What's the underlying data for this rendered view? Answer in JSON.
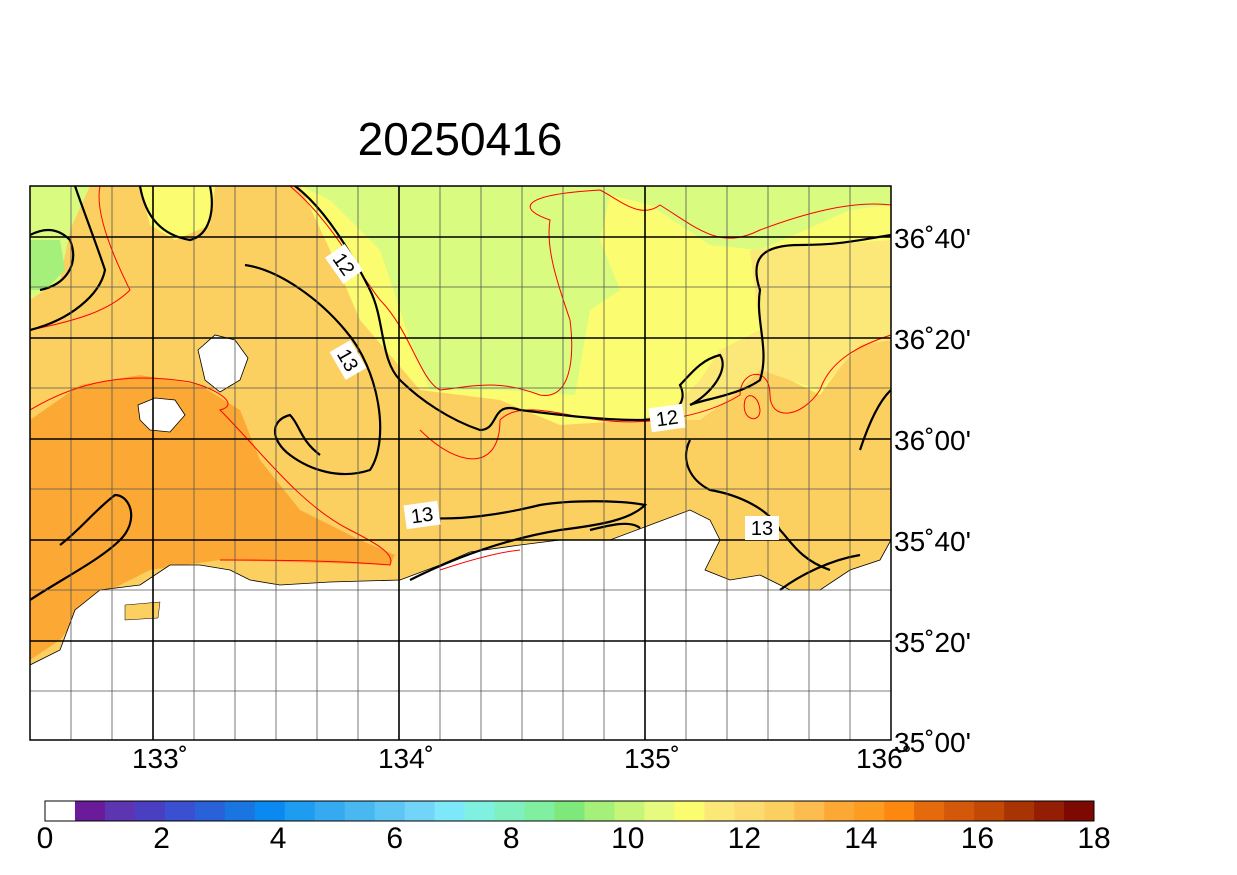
{
  "title": "20250416",
  "lon_labels": [
    "133˚",
    "134˚",
    "135˚",
    "136˚"
  ],
  "lat_labels": [
    "36˚40'",
    "36˚20'",
    "36˚00'",
    "35˚40'",
    "35˚20'",
    "35˚00'"
  ],
  "contour_labels": [
    "12",
    "13",
    "12",
    "13",
    "13"
  ],
  "colorbar": {
    "labels": [
      "0",
      "2",
      "4",
      "6",
      "8",
      "10",
      "12",
      "14",
      "16",
      "18"
    ],
    "colors": [
      "#ffffff",
      "#6a1b9a",
      "#5e35b1",
      "#4a3fc0",
      "#3a50d0",
      "#2962d8",
      "#1976e0",
      "#0a8af0",
      "#1e9cf0",
      "#36aaf0",
      "#4ab8f0",
      "#5ec6f4",
      "#72d4f8",
      "#7de8fa",
      "#80f0e0",
      "#80f0c0",
      "#80f0a0",
      "#7ee87a",
      "#a4f07a",
      "#c6f57a",
      "#e6fa80",
      "#fcfc70",
      "#fce878",
      "#fcdc70",
      "#fcd060",
      "#fcbc50",
      "#fca834",
      "#fc9c20",
      "#fc8810",
      "#e46a0c",
      "#d4580a",
      "#c24806",
      "#a83406",
      "#941e04",
      "#7c0a02"
    ]
  }
}
